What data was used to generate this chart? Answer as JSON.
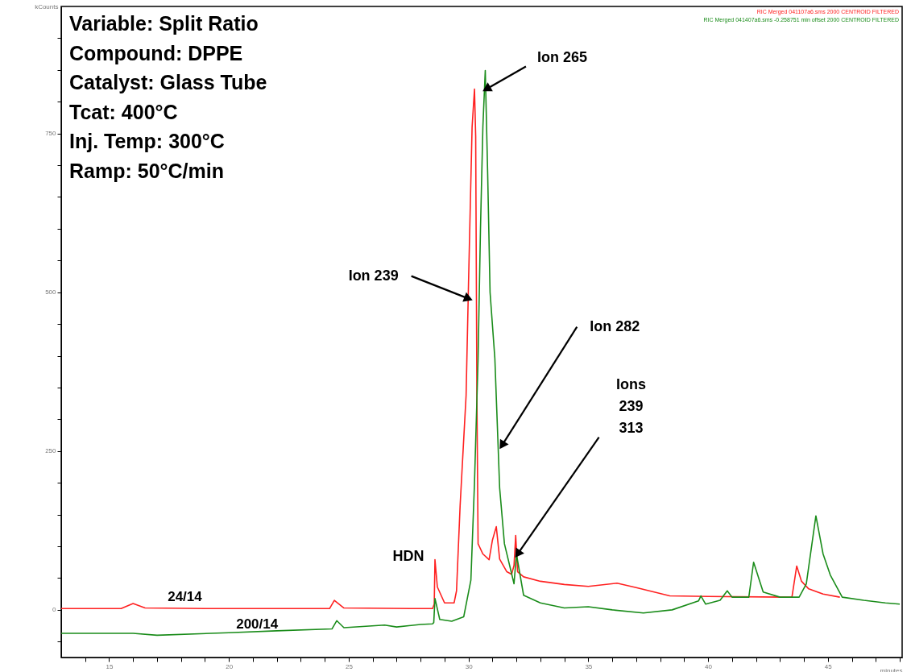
{
  "chart_data": {
    "type": "line",
    "xlabel": "minutes",
    "ylabel": "kCounts",
    "xlim": [
      13,
      48.1
    ],
    "ylim": [
      -75,
      950
    ],
    "xticks": [
      {
        "value": 14,
        "label": null
      },
      15,
      {
        "value": 16,
        "label": null
      },
      {
        "value": 17,
        "label": null
      },
      {
        "value": 18,
        "label": null
      },
      {
        "value": 19,
        "label": null
      },
      20,
      {
        "value": 21,
        "label": null
      },
      {
        "value": 22,
        "label": null
      },
      {
        "value": 23,
        "label": null
      },
      {
        "value": 24,
        "label": null
      },
      25,
      {
        "value": 26,
        "label": null
      },
      {
        "value": 27,
        "label": null
      },
      {
        "value": 28,
        "label": null
      },
      {
        "value": 29,
        "label": null
      },
      30,
      {
        "value": 31,
        "label": null
      },
      {
        "value": 32,
        "label": null
      },
      {
        "value": 33,
        "label": null
      },
      {
        "value": 34,
        "label": null
      },
      35,
      {
        "value": 36,
        "label": null
      },
      {
        "value": 37,
        "label": null
      },
      {
        "value": 38,
        "label": null
      },
      {
        "value": 39,
        "label": null
      },
      40,
      {
        "value": 41,
        "label": null
      },
      {
        "value": 42,
        "label": null
      },
      {
        "value": 43,
        "label": null
      },
      {
        "value": 44,
        "label": null
      },
      45,
      {
        "value": 46,
        "label": null
      },
      {
        "value": 47,
        "label": null
      },
      {
        "value": 48,
        "label": null
      }
    ],
    "yticks": [
      {
        "value": -50,
        "label": null
      },
      0,
      {
        "value": 50,
        "label": null
      },
      {
        "value": 100,
        "label": null
      },
      {
        "value": 150,
        "label": null
      },
      {
        "value": 200,
        "label": null
      },
      250,
      {
        "value": 300,
        "label": null
      },
      {
        "value": 350,
        "label": null
      },
      {
        "value": 400,
        "label": null
      },
      {
        "value": 450,
        "label": null
      },
      500,
      {
        "value": 550,
        "label": null
      },
      {
        "value": 600,
        "label": null
      },
      {
        "value": 650,
        "label": null
      },
      {
        "value": 700,
        "label": null
      },
      750,
      {
        "value": 800,
        "label": null
      },
      {
        "value": 850,
        "label": null
      },
      {
        "value": 900,
        "label": null
      }
    ],
    "grid": false,
    "marker": "none",
    "line_style": "solid",
    "series": [
      {
        "name": "24/14",
        "color": "#ff2020",
        "x": [
          13,
          15.5,
          16,
          16.5,
          19,
          24.2,
          24.4,
          24.8,
          28,
          28.5,
          28.57,
          28.6,
          28.7,
          29.0,
          29.4,
          29.5,
          29.65,
          29.9,
          30.0,
          30.15,
          30.25,
          30.3,
          30.35,
          30.4,
          30.6,
          30.86,
          31.0,
          31.16,
          31.3,
          31.6,
          31.8,
          31.9,
          31.97,
          32.05,
          32.3,
          33,
          34,
          35,
          36.2,
          37,
          38.4,
          40,
          43.3,
          43.5,
          43.7,
          43.9,
          44.2,
          44.8,
          45.5
        ],
        "values": [
          2,
          2,
          10,
          3,
          2,
          2,
          15,
          3,
          2,
          2,
          9,
          79,
          36,
          11,
          11,
          30,
          164,
          338,
          513,
          760,
          820,
          745,
          338,
          104,
          88,
          79,
          110,
          131,
          80,
          60,
          56,
          70,
          117,
          60,
          52,
          45,
          40,
          37,
          42,
          35,
          22,
          21,
          20,
          20,
          69,
          45,
          33,
          25,
          20
        ]
      },
      {
        "name": "200/14",
        "color": "#1a8c1a",
        "x": [
          13,
          16,
          17,
          20,
          22,
          24.3,
          24.5,
          24.8,
          26.5,
          27,
          28,
          28.5,
          28.55,
          28.6,
          28.8,
          29.3,
          29.8,
          30.1,
          30.25,
          30.4,
          30.5,
          30.6,
          30.7,
          30.8,
          30.9,
          31.1,
          31.3,
          31.5,
          31.9,
          32.0,
          32.3,
          33,
          34,
          35,
          36,
          37.3,
          38.5,
          39.6,
          39.7,
          39.9,
          40.5,
          40.8,
          41,
          41.7,
          41.9,
          42.3,
          43,
          43.8,
          44.1,
          44.5,
          44.8,
          45.1,
          45.6,
          46.5,
          47.4,
          48
        ],
        "values": [
          -37,
          -37,
          -40,
          -36,
          -33,
          -30,
          -17,
          -28,
          -24,
          -27,
          -23,
          -22,
          -20,
          18,
          -15,
          -18,
          -11,
          47,
          200,
          396,
          600,
          760,
          849,
          687,
          500,
          396,
          192,
          104,
          41,
          88,
          23,
          11,
          3,
          5,
          0,
          -5,
          0,
          14,
          22,
          9,
          15,
          30,
          20,
          20,
          75,
          28,
          20,
          20,
          41,
          148,
          88,
          55,
          20,
          15,
          11,
          9
        ]
      }
    ],
    "annotations": [
      "Variable: Split Ratio",
      "Compound: DPPE",
      "Catalyst: Glass Tube",
      "Tcat: 400°C",
      "Inj. Temp: 300°C",
      "Ramp: 50°C/min",
      "RIC Merged 041107a6.sms 2000 CENTROID FILTERED",
      "RIC Merged 041407a6.sms -0.258751 min offset 2000 CENTROID FILTERED",
      {
        "text": "Ion 265",
        "x": 30.75,
        "y": 820
      },
      {
        "text": "Ion 239",
        "x": 30.0,
        "y": 490
      },
      {
        "text": "Ion 282",
        "x": 31.4,
        "y": 259
      },
      {
        "text": "Ions 239 313",
        "x": 32.05,
        "y": 88
      },
      {
        "text": "HDN",
        "x": 28.6,
        "y": 79
      }
    ]
  }
}
